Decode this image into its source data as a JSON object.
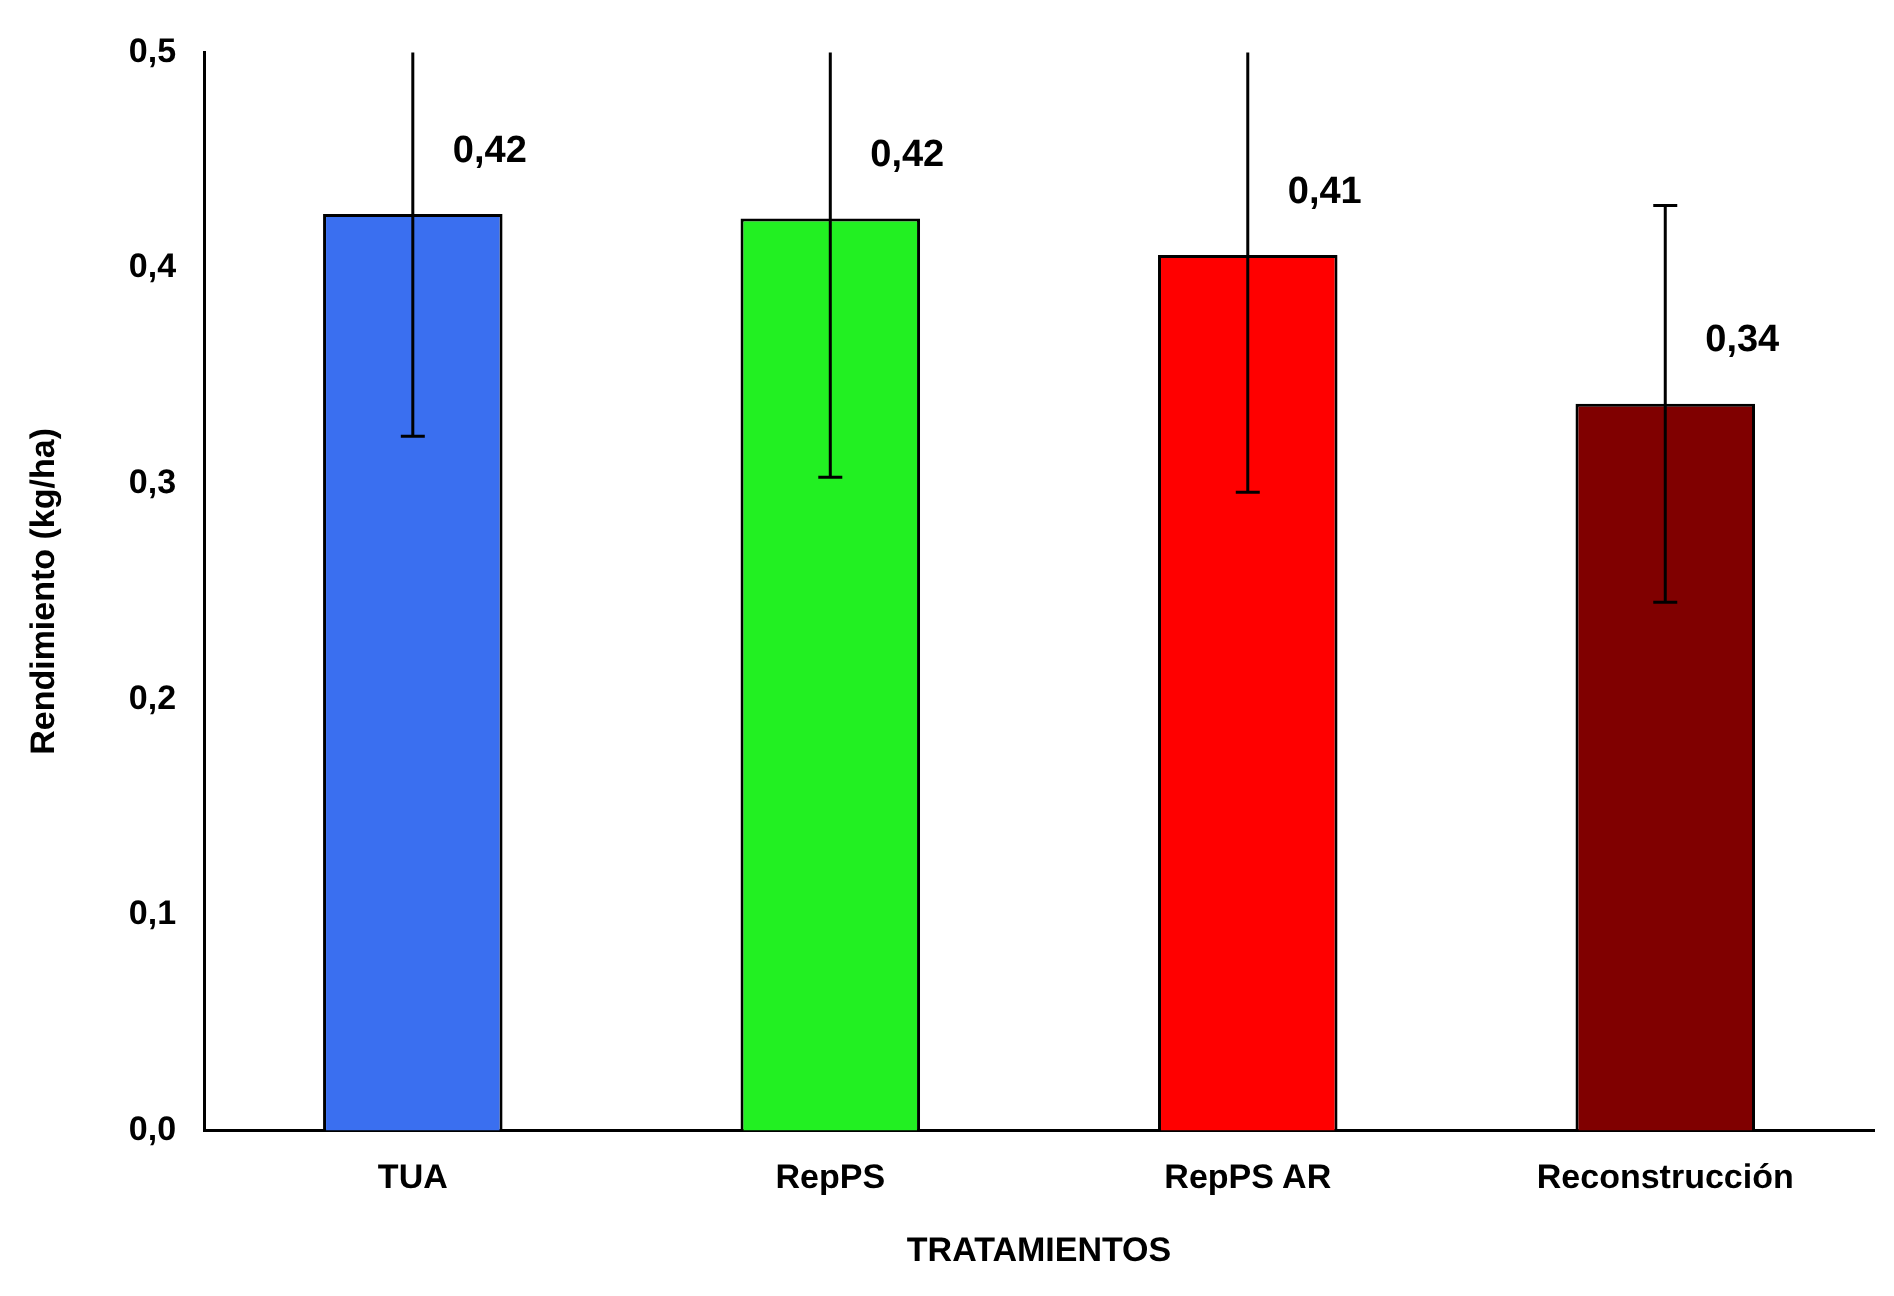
{
  "chart_data": {
    "type": "bar",
    "xlabel": "TRATAMIENTOS",
    "ylabel": "Rendimiento (kg/ha)",
    "categories": [
      "TUA",
      "RepPS",
      "RepPS AR",
      "Reconstrucción"
    ],
    "values": [
      0.425,
      0.423,
      0.406,
      0.337
    ],
    "colors": [
      "#3a6ff0",
      "#22f022",
      "#ff0000",
      "#800000"
    ],
    "errors": [
      [
        0.322,
        0.5
      ],
      [
        0.303,
        0.5
      ],
      [
        0.296,
        0.5
      ],
      [
        0.245,
        0.429
      ]
    ],
    "value_labels": [
      "0,42",
      "0,42",
      "0,41",
      "0,34"
    ],
    "ylim": [
      0,
      0.5
    ],
    "yticks": [
      {
        "value": 0,
        "label": "0,0"
      },
      {
        "value": 0.1,
        "label": "0,1"
      },
      {
        "value": 0.2,
        "label": "0,2"
      },
      {
        "value": 0.3,
        "label": "0,3"
      },
      {
        "value": 0.4,
        "label": "0,4"
      },
      {
        "value": 0.5,
        "label": "0,5"
      }
    ],
    "grid": false,
    "legend": false
  }
}
